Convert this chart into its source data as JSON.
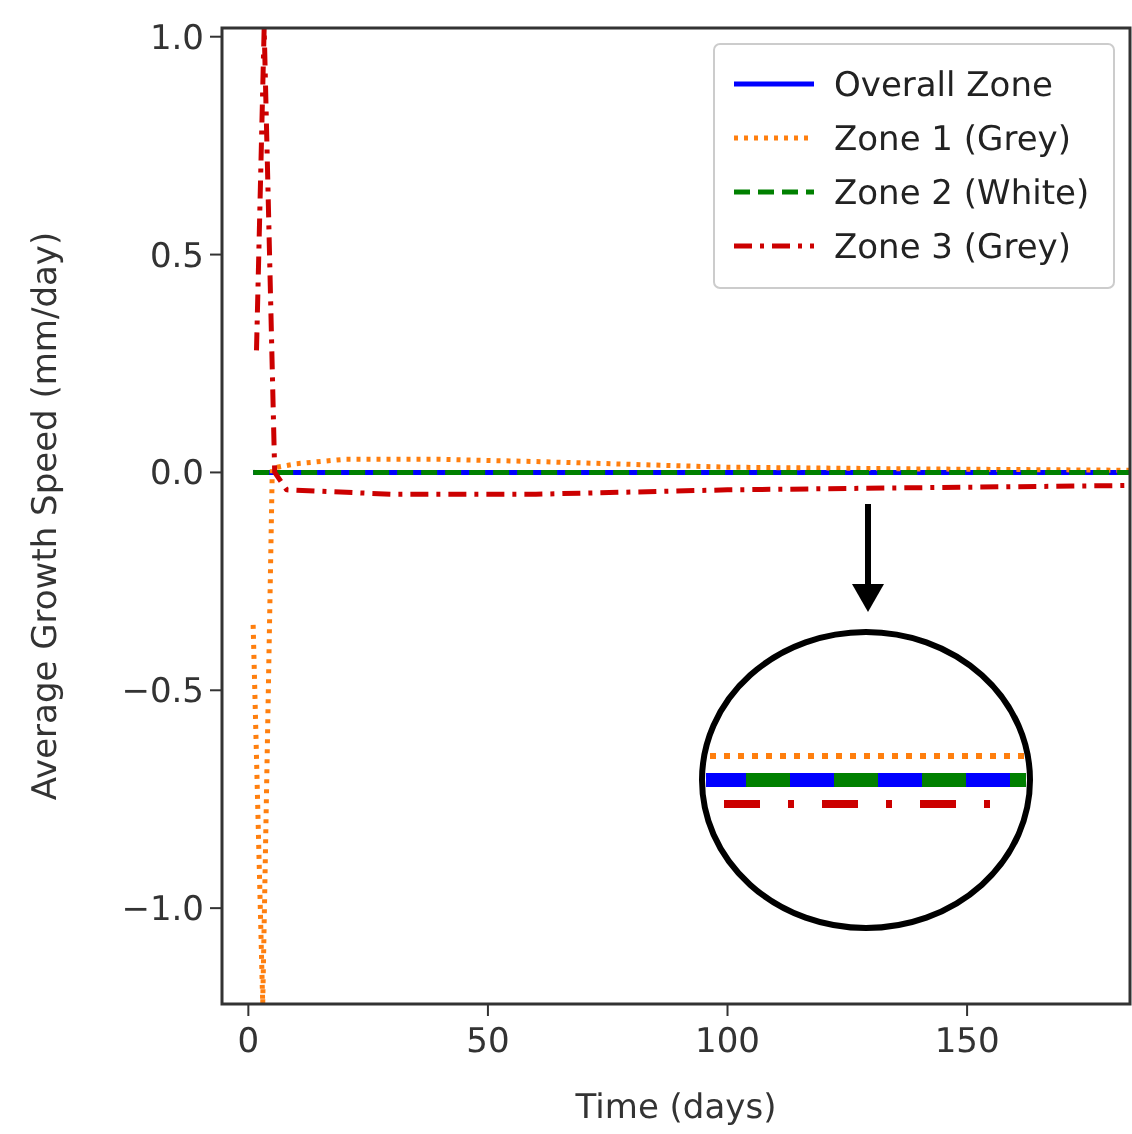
{
  "chart_data": {
    "type": "line",
    "xlabel": "Time (days)",
    "ylabel": "Average Growth Speed (mm/day)",
    "xlim": [
      -5.5,
      184
    ],
    "ylim": [
      -1.22,
      1.02
    ],
    "xticks": [
      0,
      50,
      100,
      150
    ],
    "yticks": [
      {
        "value": -1,
        "label": "−1.0"
      },
      {
        "value": -0.5,
        "label": "−0.5"
      },
      {
        "value": 0,
        "label": "0.0"
      },
      {
        "value": 0.5,
        "label": "0.5"
      },
      {
        "value": 1,
        "label": "1.0"
      }
    ],
    "grid": false,
    "legend": "top right",
    "series": [
      {
        "name": "Overall Zone",
        "color": "#0000ff",
        "line_style": "solid",
        "x": [
          1,
          184
        ],
        "values": [
          0,
          0
        ]
      },
      {
        "name": "Zone 1 (Grey)",
        "color": "#ff7f0e",
        "line_style": "dotted",
        "x": [
          1,
          3,
          5,
          10,
          20,
          40,
          60,
          100,
          140,
          184
        ],
        "values": [
          -0.35,
          -1.22,
          0.01,
          0.02,
          0.03,
          0.03,
          0.025,
          0.012,
          0.008,
          0.005
        ]
      },
      {
        "name": "Zone 2 (White)",
        "color": "#008000",
        "line_style": "dashed",
        "x": [
          1,
          184
        ],
        "values": [
          0,
          0
        ]
      },
      {
        "name": "Zone 3 (Grey)",
        "color": "#cc0000",
        "line_style": "dashdot",
        "x": [
          1.7,
          3.3,
          5.5,
          8,
          30,
          60,
          100,
          140,
          184
        ],
        "values": [
          0.28,
          1.02,
          0,
          -0.04,
          -0.05,
          -0.05,
          -0.04,
          -0.035,
          -0.03
        ]
      }
    ]
  }
}
